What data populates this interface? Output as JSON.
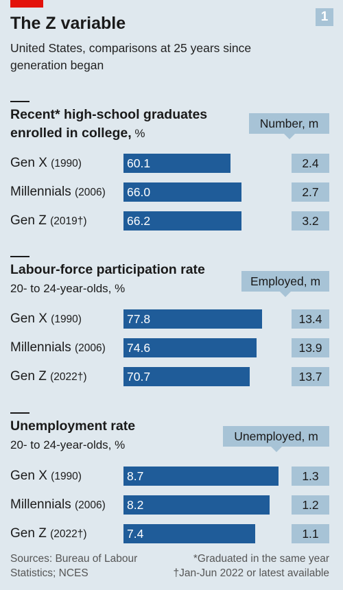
{
  "header": {
    "title": "The Z variable",
    "subtitle": "United States, comparisons at 25 years since generation began",
    "number": "1"
  },
  "colors": {
    "bar": "#1f5c99",
    "box": "#a7c3d6",
    "background": "#dfe8ee",
    "accent": "#e3120b"
  },
  "chart_data": [
    {
      "type": "bar",
      "title": "Recent* high-school graduates enrolled in college, %",
      "title_main": "Recent* high-school graduates enrolled in college,",
      "unit": " %",
      "subtitle": "",
      "side_label": "Number, m",
      "xlim": [
        0,
        100
      ],
      "categories": [
        "Gen X",
        "Millennials",
        "Gen Z"
      ],
      "years": [
        "(1990)",
        "(2006)",
        "(2019†)"
      ],
      "values": [
        60.1,
        66.0,
        66.2
      ],
      "value_labels": [
        "60.1",
        "66.0",
        "66.2"
      ],
      "side_values": [
        "2.4",
        "2.7",
        "3.2"
      ]
    },
    {
      "type": "bar",
      "title": "Labour-force participation rate",
      "title_main": "Labour-force participation rate",
      "unit": "",
      "subtitle": "20- to 24-year-olds, %",
      "side_label": "Employed, m",
      "xlim": [
        0,
        100
      ],
      "categories": [
        "Gen X",
        "Millennials",
        "Gen Z"
      ],
      "years": [
        "(1990)",
        "(2006)",
        "(2022†)"
      ],
      "values": [
        77.8,
        74.6,
        70.7
      ],
      "value_labels": [
        "77.8",
        "74.6",
        "70.7"
      ],
      "side_values": [
        "13.4",
        "13.9",
        "13.7"
      ]
    },
    {
      "type": "bar",
      "title": "Unemployment rate",
      "title_main": "Unemployment rate",
      "unit": "",
      "subtitle": "20- to 24-year-olds, %",
      "side_label": "Unemployed, m",
      "xlim": [
        0,
        10
      ],
      "categories": [
        "Gen X",
        "Millennials",
        "Gen Z"
      ],
      "years": [
        "(1990)",
        "(2006)",
        "(2022†)"
      ],
      "values": [
        8.7,
        8.2,
        7.4
      ],
      "value_labels": [
        "8.7",
        "8.2",
        "7.4"
      ],
      "side_values": [
        "1.3",
        "1.2",
        "1.1"
      ]
    }
  ],
  "footer": {
    "sources": "Sources: Bureau of Labour Statistics; NCES",
    "note1": "*Graduated in the same year",
    "note2": "†Jan-Jun 2022 or latest available"
  }
}
